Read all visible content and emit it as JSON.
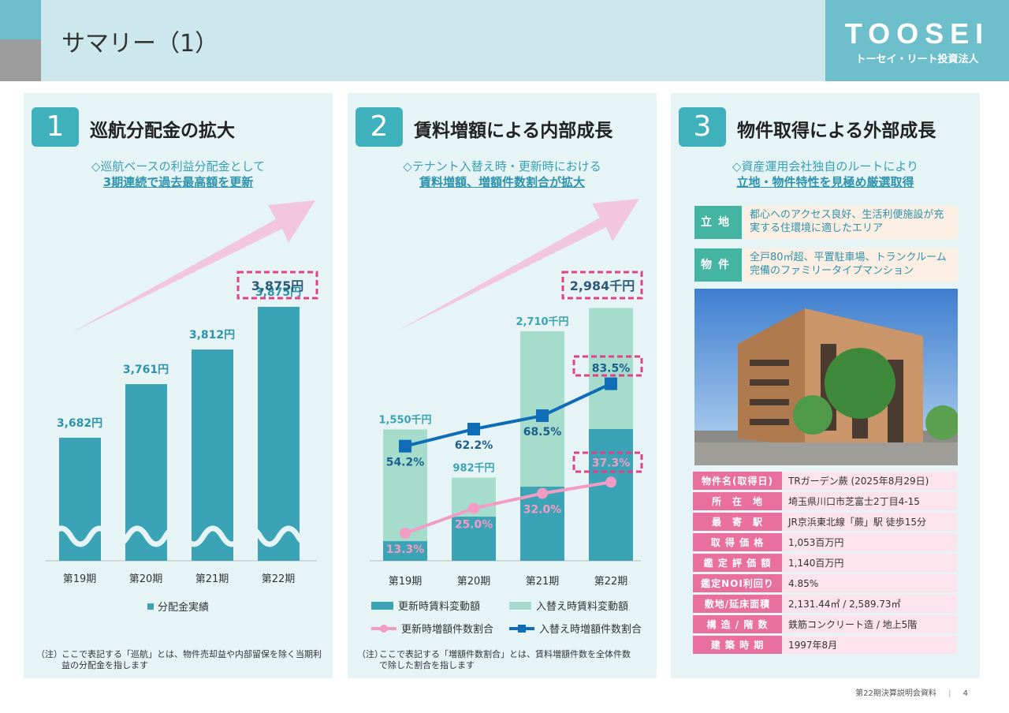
{
  "header": {
    "title": "サマリー（1）",
    "logo_main": "TOOSEI",
    "logo_sub": "トーセイ・リート投資法人"
  },
  "panel1": {
    "number": "1",
    "title": "巡航分配金の拡大",
    "sub1": "◇巡航ベースの利益分配金として",
    "sub2": "3期連続で過去最高額を更新",
    "highlight": "3,875円",
    "note_prefix": "（注）",
    "note": "ここで表記する「巡航」とは、物件売却益や内部留保を除く当期利益の分配金を指します"
  },
  "panel2": {
    "number": "2",
    "title": "賃料増額による内部成長",
    "sub1": "◇テナント入替え時・更新時における",
    "sub2": "賃料増額、増額件数割合が拡大",
    "highlight": "2,984千円",
    "note_prefix": "（注）",
    "note": "ここで表記する「増額件数割合」とは、賃料増額件数を全体件数で除した割合を指します"
  },
  "panel3": {
    "number": "3",
    "title": "物件取得による外部成長",
    "sub1": "◇資産運用会社独自のルートにより",
    "sub2": "立地・物件特性を見極め厳選取得",
    "features": [
      {
        "tag": "立地",
        "text": "都心へのアクセス良好、生活利便施設が充実する住環境に適したエリア"
      },
      {
        "tag": "物件",
        "text": "全戸80㎡超、平置駐車場、トランクルーム完備のファミリータイプマンション"
      }
    ],
    "table": [
      [
        "物件名(取得日)",
        "TRガーデン蕨 (2025年8月29日)"
      ],
      [
        "所　在　地",
        "埼玉県川口市芝富士2丁目4-15"
      ],
      [
        "最　寄　駅",
        "JR京浜東北線「蕨」駅 徒歩15分"
      ],
      [
        "取 得 価 格",
        "1,053百万円"
      ],
      [
        "鑑 定 評 価 額",
        "1,140百万円"
      ],
      [
        "鑑定NOI利回り",
        "4.85%"
      ],
      [
        "敷地/延床面積",
        "2,131.44㎡ / 2,589.73㎡"
      ],
      [
        "構 造 / 階 数",
        "鉄筋コンクリート造 / 地上5階"
      ],
      [
        "建 築 時 期",
        "1997年8月"
      ]
    ]
  },
  "footer": {
    "doc": "第22期決算説明会資料",
    "page": "4"
  },
  "colors": {
    "teal": "#3aa3b5",
    "mint": "#a6dccb",
    "blue": "#0f6db8",
    "pink": "#f39cc3",
    "accent": "#e0428a"
  },
  "chart_data": [
    {
      "type": "bar",
      "title": "巡航分配金",
      "categories": [
        "第19期",
        "第20期",
        "第21期",
        "第22期"
      ],
      "series": [
        {
          "name": "分配金実績",
          "values": [
            3682,
            3761,
            3812,
            3875
          ]
        }
      ],
      "labels": [
        "3,682円",
        "3,761円",
        "3,812円",
        "3,875円"
      ],
      "axis_break": true
    },
    {
      "type": "bar",
      "categories": [
        "第19期",
        "第20期",
        "第21期",
        "第22期"
      ],
      "series": [
        {
          "name": "更新時賃料変動額",
          "values": [
            232,
            521,
            875,
            1555
          ],
          "kind": "stacked-bar"
        },
        {
          "name": "入替え時賃料変動額",
          "values": [
            1318,
            461,
            1835,
            1429
          ],
          "kind": "stacked-bar"
        },
        {
          "name": "更新時増額件数割合",
          "values": [
            13.3,
            25.0,
            32.0,
            37.3
          ],
          "kind": "line"
        },
        {
          "name": "入替え時増額件数割合",
          "values": [
            54.2,
            62.2,
            68.5,
            83.5
          ],
          "kind": "line"
        }
      ],
      "total_labels": [
        "1,550千円",
        "982千円",
        "2,710千円",
        ""
      ],
      "pct_labels_a": [
        "13.3%",
        "25.0%",
        "32.0%",
        "37.3%"
      ],
      "pct_labels_b": [
        "54.2%",
        "62.2%",
        "68.5%",
        "83.5%"
      ]
    }
  ]
}
